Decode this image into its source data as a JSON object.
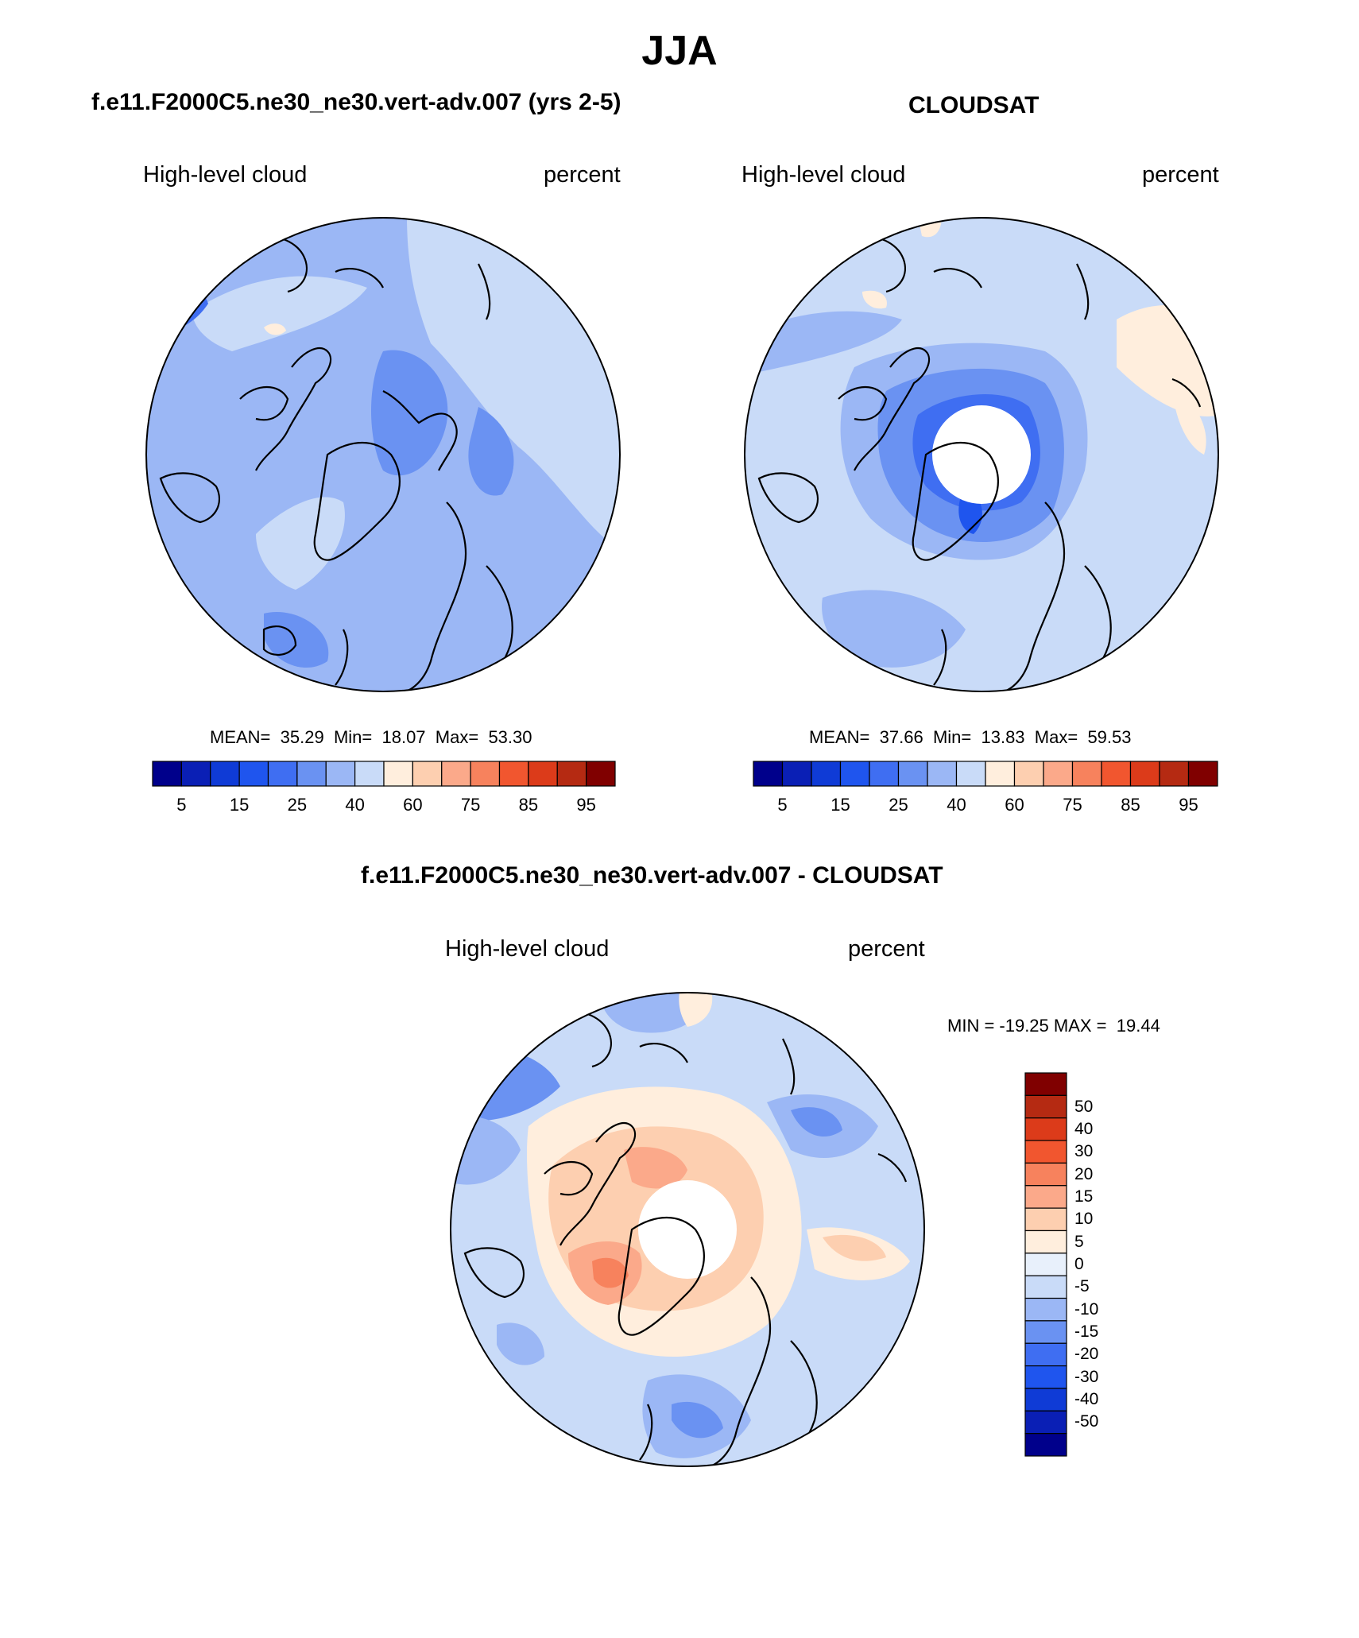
{
  "page_title": "JJA",
  "panels": [
    {
      "case_title": "f.e11.F2000C5.ne30_ne30.vert-adv.007 (yrs 2-5)",
      "left_label": "High-level cloud",
      "right_label": "percent",
      "stats": {
        "mean_label": "MEAN=",
        "mean": "35.29",
        "min_label": "Min=",
        "min": "18.07",
        "max_label": "Max=",
        "max": "53.30"
      }
    },
    {
      "case_title": "CLOUDSAT",
      "left_label": "High-level cloud",
      "right_label": "percent",
      "stats": {
        "mean_label": "MEAN=",
        "mean": "37.66",
        "min_label": "Min=",
        "min": "13.83",
        "max_label": "Max=",
        "max": "59.53"
      }
    }
  ],
  "difference_panel": {
    "case_title": "f.e11.F2000C5.ne30_ne30.vert-adv.007 - CLOUDSAT",
    "left_label": "High-level cloud",
    "right_label": "percent",
    "minmax_text": "MIN = -19.25 MAX =  19.44"
  },
  "colorbar_horizontal": {
    "colors": [
      "#00008b",
      "#0a1fb5",
      "#0f3bd6",
      "#1f55ee",
      "#3f6ef2",
      "#6a92f2",
      "#9bb7f5",
      "#c9dbf8",
      "#ffeedd",
      "#fdcfb0",
      "#fba98a",
      "#f7825d",
      "#f1562f",
      "#dc3b1a",
      "#b52a12",
      "#800000"
    ],
    "tick_labels": [
      "5",
      "15",
      "25",
      "40",
      "60",
      "75",
      "85",
      "95"
    ]
  },
  "colorbar_vertical": {
    "colors": [
      "#800000",
      "#b52a12",
      "#dc3b1a",
      "#f1562f",
      "#f7825d",
      "#fba98a",
      "#fdcfb0",
      "#ffeedd",
      "#e8f0fb",
      "#c9dbf8",
      "#9bb7f5",
      "#6a92f2",
      "#3f6ef2",
      "#1f55ee",
      "#0f3bd6",
      "#0a1fb5",
      "#00008b"
    ],
    "tick_labels": [
      "50",
      "40",
      "30",
      "20",
      "15",
      "10",
      "5",
      "0",
      "-5",
      "-10",
      "-15",
      "-20",
      "-30",
      "-40",
      "-50"
    ]
  },
  "map_colors": {
    "ocean_base_blue": "#9bb7f5",
    "light_blue": "#c9dbf8",
    "mid_blue": "#6a92f2",
    "deep_blue": "#3f6ef2",
    "strong_blue": "#1f55ee",
    "cream": "#ffeedd",
    "salmon": "#fdcfb0",
    "orange": "#fba98a",
    "red_orange": "#f7825d",
    "coast": "#000000"
  }
}
